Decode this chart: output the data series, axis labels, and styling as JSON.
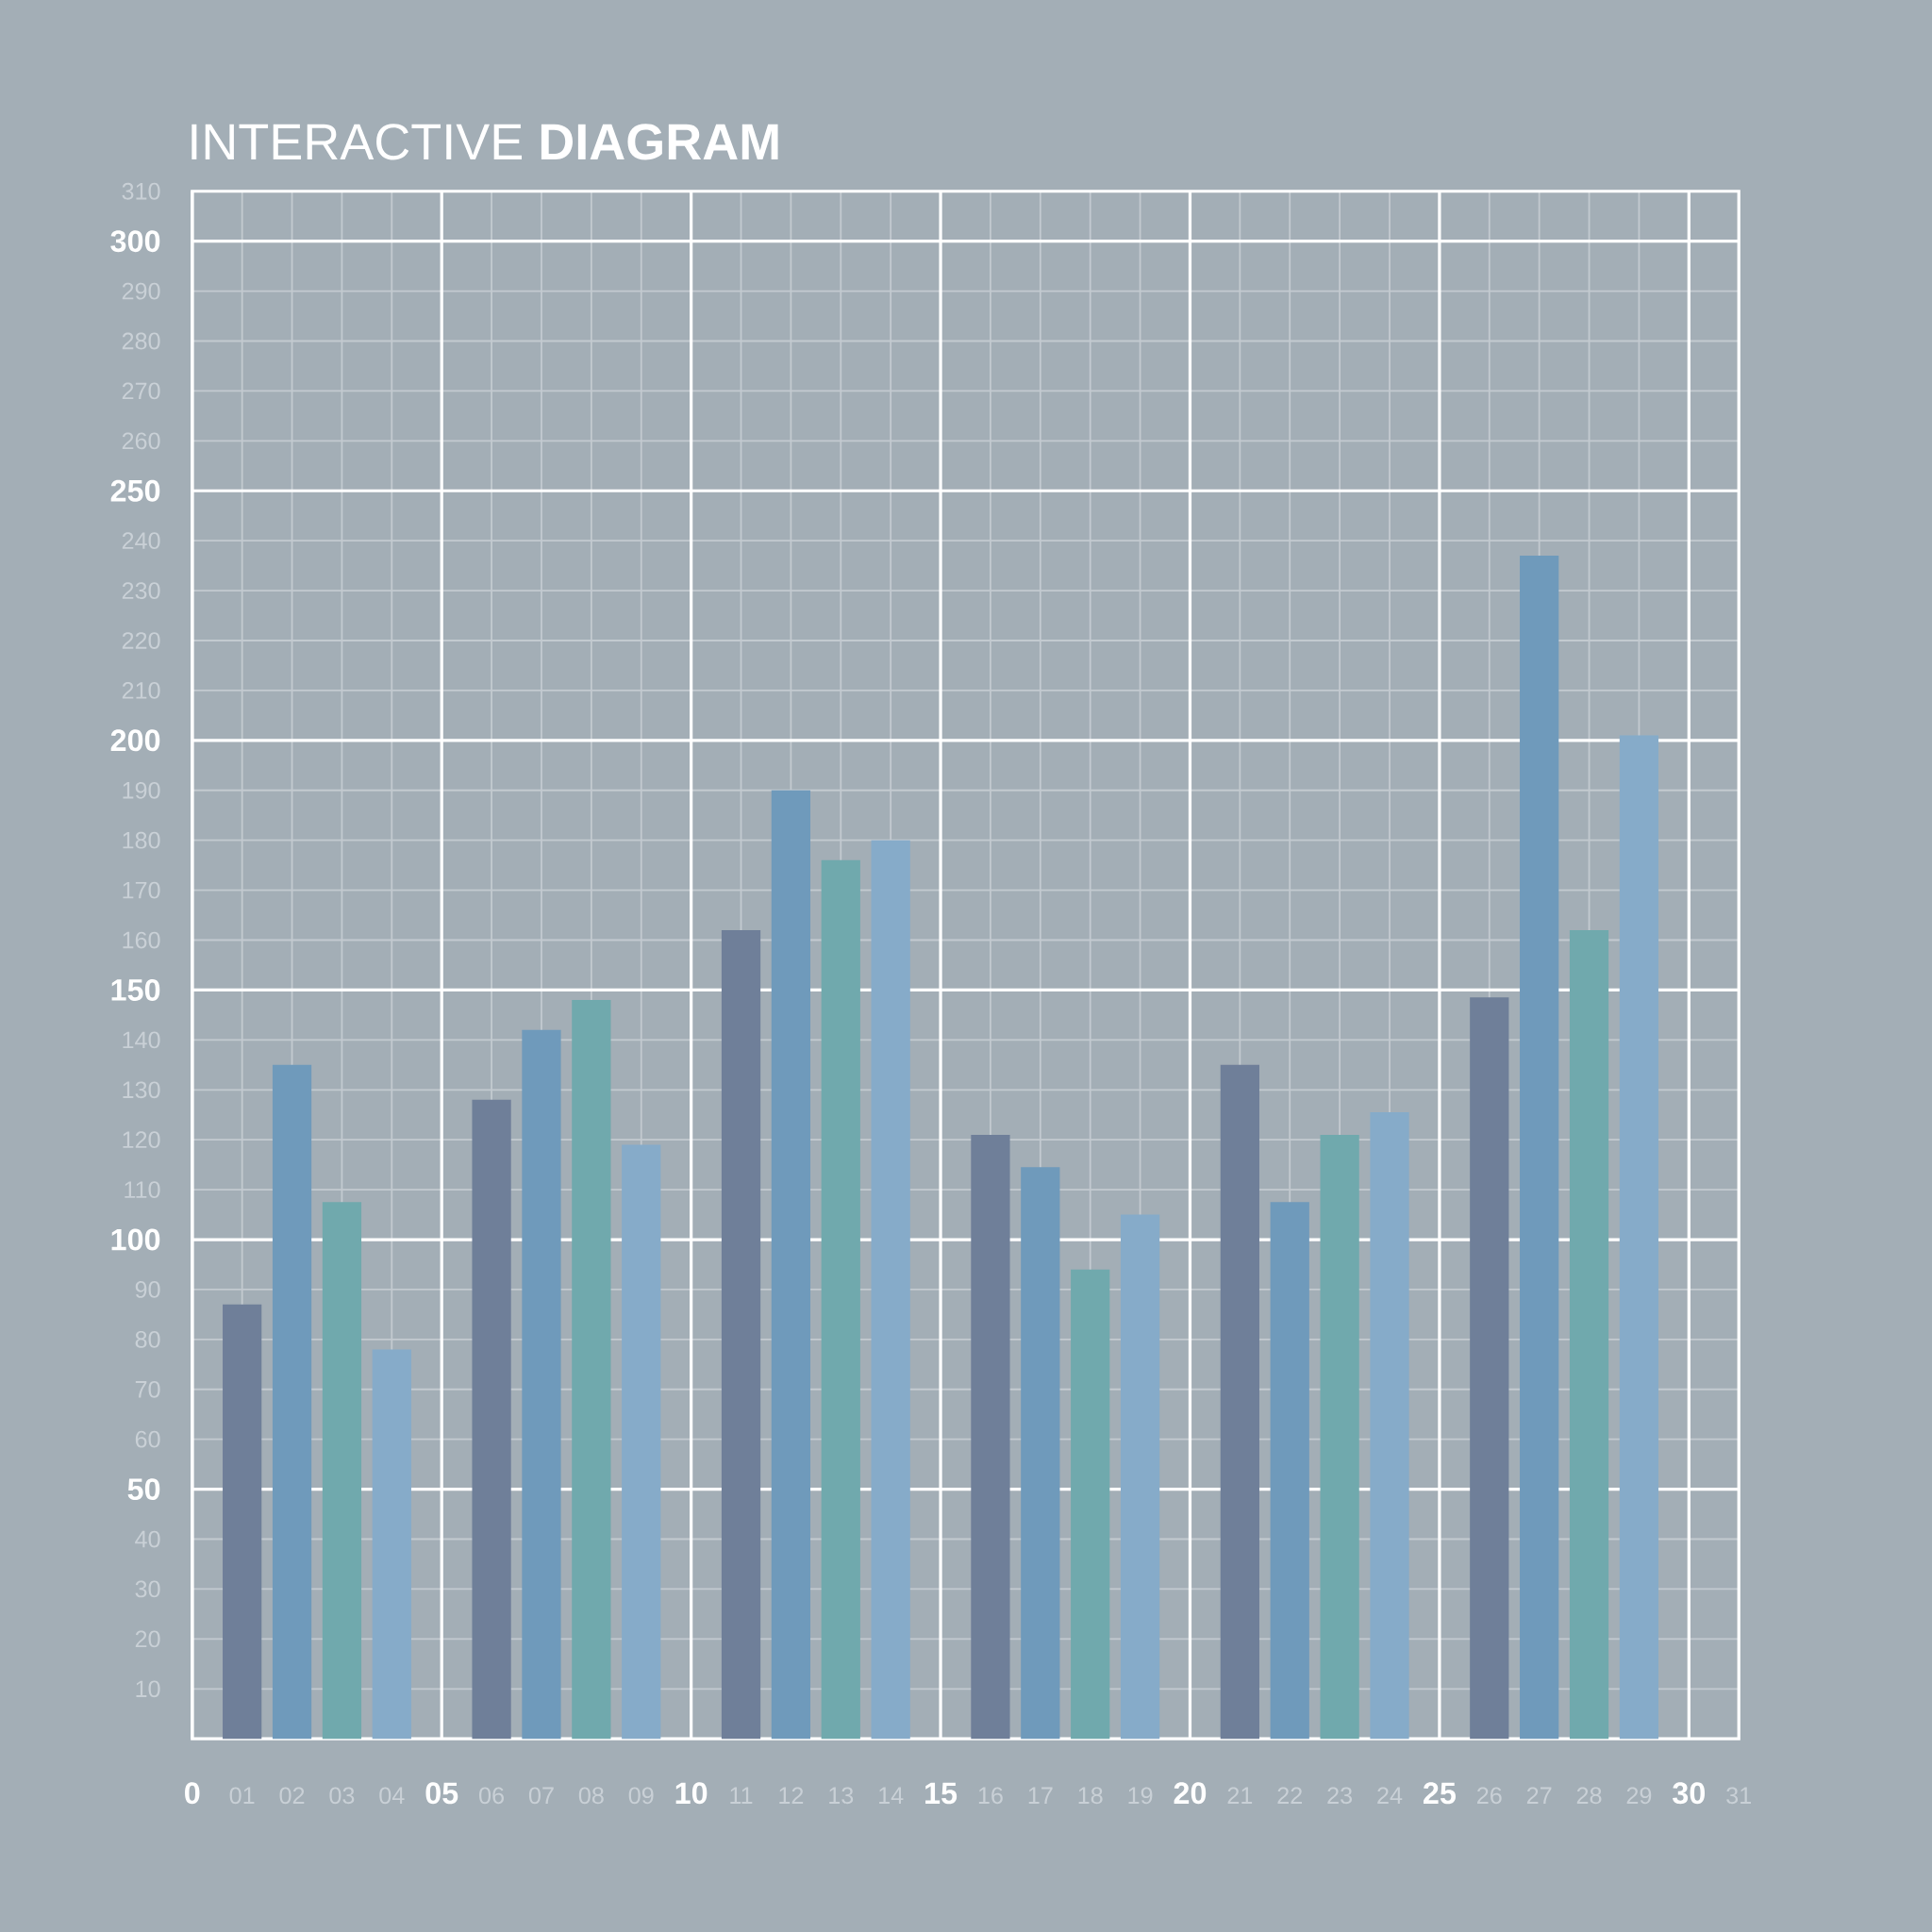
{
  "chart_data": {
    "type": "bar",
    "title": "INTERACTIVE **DIAGRAM**",
    "x": [
      1,
      2,
      3,
      4,
      6,
      7,
      8,
      9,
      11,
      12,
      13,
      14,
      16,
      17,
      18,
      19,
      21,
      22,
      23,
      24,
      26,
      27,
      28,
      29
    ],
    "values": [
      87,
      135,
      107.5,
      78,
      128,
      142,
      148,
      119,
      162,
      190,
      176,
      180,
      121,
      114.5,
      94,
      105,
      135,
      107.5,
      121,
      125.5,
      148.5,
      237,
      162,
      201
    ],
    "colors": [
      "#6f7f99",
      "#6f9abb",
      "#70a9ad",
      "#86abc9",
      "#6f7f99",
      "#6f9abb",
      "#70a9ad",
      "#86abc9",
      "#6f7f99",
      "#6f9abb",
      "#70a9ad",
      "#86abc9",
      "#6f7f99",
      "#6f9abb",
      "#70a9ad",
      "#86abc9",
      "#6f7f99",
      "#6f9abb",
      "#70a9ad",
      "#86abc9",
      "#6f7f99",
      "#6f9abb",
      "#70a9ad",
      "#86abc9"
    ],
    "xlim": [
      0,
      31
    ],
    "ylim": [
      0,
      310
    ],
    "xticks": [
      {
        "value": 0,
        "label": "0"
      },
      {
        "value": 1,
        "label": "01"
      },
      {
        "value": 2,
        "label": "02"
      },
      {
        "value": 3,
        "label": "03"
      },
      {
        "value": 4,
        "label": "04"
      },
      {
        "value": 5,
        "label": "05"
      },
      {
        "value": 6,
        "label": "06"
      },
      {
        "value": 7,
        "label": "07"
      },
      {
        "value": 8,
        "label": "08"
      },
      {
        "value": 9,
        "label": "09"
      },
      {
        "value": 10,
        "label": "10"
      },
      {
        "value": 11,
        "label": "11"
      },
      {
        "value": 12,
        "label": "12"
      },
      {
        "value": 13,
        "label": "13"
      },
      {
        "value": 14,
        "label": "14"
      },
      {
        "value": 15,
        "label": "15"
      },
      {
        "value": 16,
        "label": "16"
      },
      {
        "value": 17,
        "label": "17"
      },
      {
        "value": 18,
        "label": "18"
      },
      {
        "value": 19,
        "label": "19"
      },
      {
        "value": 20,
        "label": "20"
      },
      {
        "value": 21,
        "label": "21"
      },
      {
        "value": 22,
        "label": "22"
      },
      {
        "value": 23,
        "label": "23"
      },
      {
        "value": 24,
        "label": "24"
      },
      {
        "value": 25,
        "label": "25"
      },
      {
        "value": 26,
        "label": "26"
      },
      {
        "value": 27,
        "label": "27"
      },
      {
        "value": 28,
        "label": "28"
      },
      {
        "value": 29,
        "label": "29"
      },
      {
        "value": 30,
        "label": "30"
      },
      {
        "value": 31,
        "label": "31"
      }
    ],
    "yticks": [
      10,
      20,
      30,
      40,
      50,
      60,
      70,
      80,
      90,
      100,
      110,
      120,
      130,
      140,
      150,
      160,
      170,
      180,
      190,
      200,
      210,
      220,
      230,
      240,
      250,
      260,
      270,
      280,
      290,
      300,
      310
    ],
    "grid": true
  }
}
